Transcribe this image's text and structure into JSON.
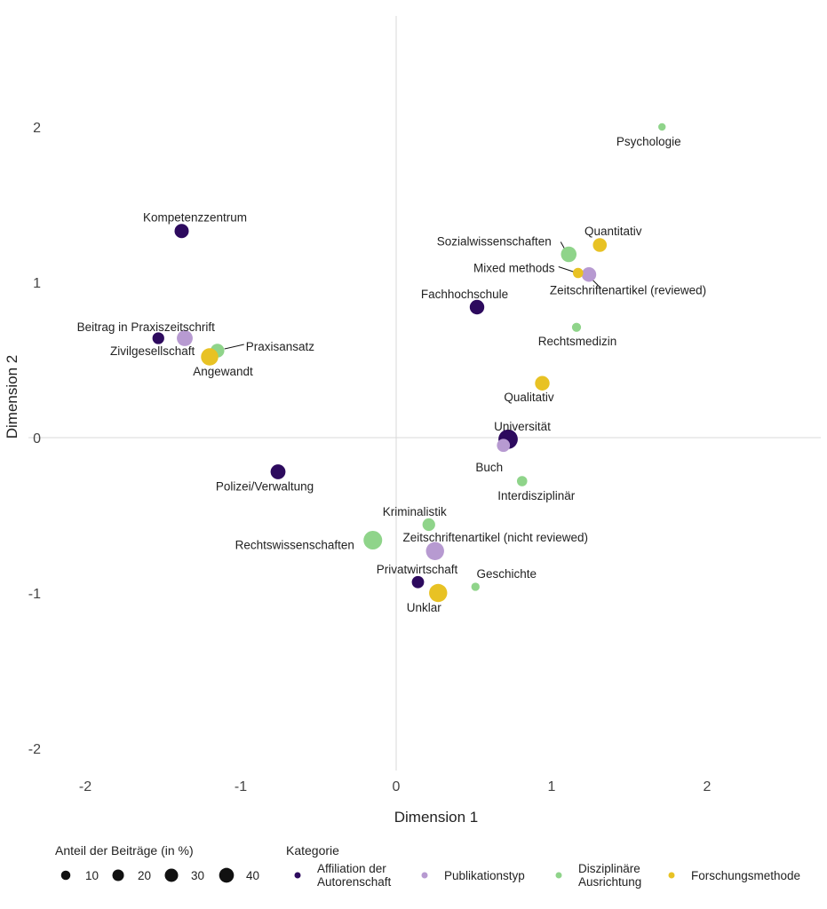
{
  "chart_data": {
    "type": "scatter",
    "xlabel": "Dimension 1",
    "ylabel": "Dimension 2",
    "xlim": [
      -2.2,
      2.7
    ],
    "ylim": [
      -2.2,
      2.7
    ],
    "x_ticks": [
      "-2",
      "-1",
      "0",
      "1",
      "2"
    ],
    "y_ticks": [
      "-2",
      "-1",
      "0",
      "1",
      "2"
    ],
    "grid": false,
    "zero_lines": true,
    "legend_position": "bottom",
    "size_legend": {
      "title": "Anteil der Beiträge (in %)",
      "entries": [
        {
          "label": "10",
          "value": 10
        },
        {
          "label": "20",
          "value": 20
        },
        {
          "label": "30",
          "value": 30
        },
        {
          "label": "40",
          "value": 40
        }
      ]
    },
    "color_legend": {
      "title": "Kategorie",
      "entries": [
        {
          "label": [
            "Affiliation der",
            "Autorenschaft"
          ],
          "color": "#2d0a5e"
        },
        {
          "label": [
            "Publikationstyp"
          ],
          "color": "#b79ad1"
        },
        {
          "label": [
            "Disziplinäre",
            "Ausrichtung"
          ],
          "color": "#8fd48a"
        },
        {
          "label": [
            "Forschungsmethode"
          ],
          "color": "#e8c224"
        }
      ]
    },
    "series": [
      {
        "name": "Affiliation der Autorenschaft",
        "color": "#2d0a5e",
        "points": [
          {
            "label": "Kompetenzzentrum",
            "x": -1.38,
            "y": 1.33,
            "size": 15
          },
          {
            "label": "Beitrag in Praxiszeitschrift",
            "x": -1.53,
            "y": 0.64,
            "size": 9
          },
          {
            "label": "Polizei/Verwaltung",
            "x": -0.76,
            "y": -0.22,
            "size": 17
          },
          {
            "label": "Fachhochschule",
            "x": 0.52,
            "y": 0.84,
            "size": 16
          },
          {
            "label": "Universität",
            "x": 0.72,
            "y": -0.01,
            "size": 33
          },
          {
            "label": "Privatwirtschaft",
            "x": 0.14,
            "y": -0.93,
            "size": 10
          }
        ]
      },
      {
        "name": "Publikationstyp",
        "color": "#b79ad1",
        "points": [
          {
            "label": "Zivilgesellschaft",
            "x": -1.36,
            "y": 0.64,
            "size": 20
          },
          {
            "label": "Zeitschriftenartikel (reviewed)",
            "x": 1.24,
            "y": 1.05,
            "size": 16
          },
          {
            "label": "Buch",
            "x": 0.69,
            "y": -0.05,
            "size": 12
          },
          {
            "label": "Zeitschriftenartikel (nicht reviewed)",
            "x": 0.25,
            "y": -0.73,
            "size": 28
          }
        ]
      },
      {
        "name": "Disziplinäre Ausrichtung",
        "color": "#8fd48a",
        "points": [
          {
            "label": "Psychologie",
            "x": 1.71,
            "y": 2.0,
            "size": 2
          },
          {
            "label": "Sozialwissenschaften",
            "x": 1.11,
            "y": 1.18,
            "size": 19
          },
          {
            "label": "Praxisansatz",
            "x": -1.15,
            "y": 0.56,
            "size": 14
          },
          {
            "label": "Rechtsmedizin",
            "x": 1.16,
            "y": 0.71,
            "size": 4
          },
          {
            "label": "Interdisziplinär",
            "x": 0.81,
            "y": -0.28,
            "size": 6
          },
          {
            "label": "Kriminalistik",
            "x": 0.21,
            "y": -0.56,
            "size": 11
          },
          {
            "label": "Rechtswissenschaften",
            "x": -0.15,
            "y": -0.66,
            "size": 30
          },
          {
            "label": "Geschichte",
            "x": 0.51,
            "y": -0.96,
            "size": 3
          }
        ]
      },
      {
        "name": "Forschungsmethode",
        "color": "#e8c224",
        "points": [
          {
            "label": "Quantitativ",
            "x": 1.31,
            "y": 1.24,
            "size": 14
          },
          {
            "label": "Mixed methods",
            "x": 1.17,
            "y": 1.06,
            "size": 6
          },
          {
            "label": "Angewandt",
            "x": -1.2,
            "y": 0.52,
            "size": 25
          },
          {
            "label": "Qualitativ",
            "x": 0.94,
            "y": 0.35,
            "size": 16
          },
          {
            "label": "Unklar",
            "x": 0.27,
            "y": -1.0,
            "size": 28
          }
        ]
      }
    ]
  }
}
